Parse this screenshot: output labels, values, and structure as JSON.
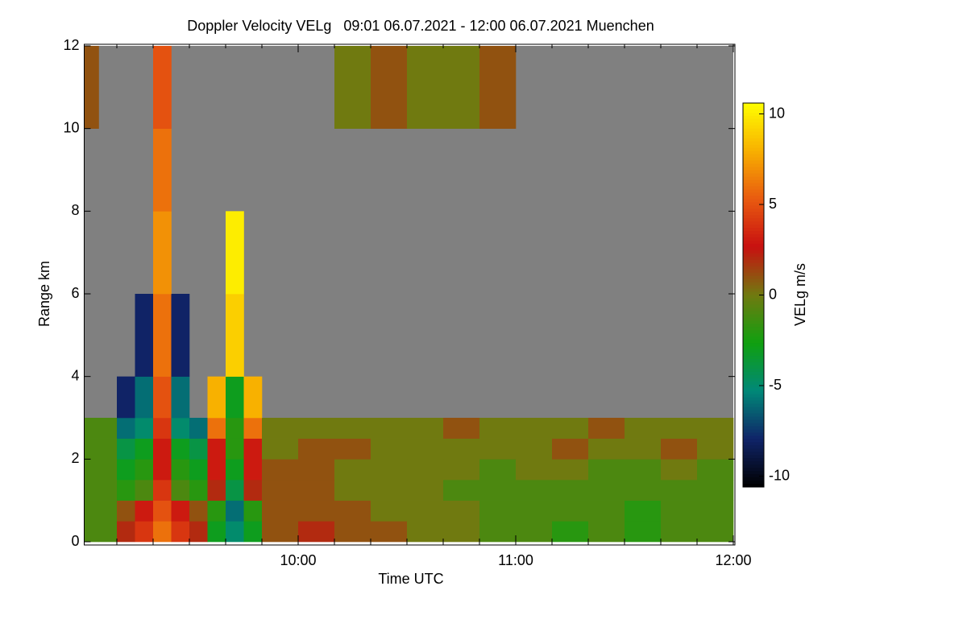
{
  "chart_data": {
    "type": "heatmap",
    "title": "Doppler Velocity VELg   09:01 06.07.2021 - 12:00 06.07.2021 Muenchen",
    "x_label": "Time UTC",
    "y_label": "Range km",
    "colorbar_label": "VELg m/s",
    "xlim": [
      541,
      720
    ],
    "ylim": [
      0,
      12
    ],
    "xticks": [
      {
        "value": 600,
        "label": "10:00"
      },
      {
        "value": 660,
        "label": "11:00"
      },
      {
        "value": 720,
        "label": "12:00"
      }
    ],
    "xminorticks": [
      550,
      560,
      570,
      580,
      590,
      610,
      620,
      630,
      640,
      650,
      670,
      680,
      690,
      700,
      710
    ],
    "yticks": [
      0,
      2,
      4,
      6,
      8,
      10,
      12
    ],
    "zlim": [
      -10.6,
      10.6
    ],
    "colorbar_ticks": [
      -10,
      -5,
      0,
      5,
      10
    ],
    "colormap": [
      "#000000",
      "#102468",
      "#008878",
      "#10a010",
      "#707a10",
      "#c81010",
      "#e85a10",
      "#f8b000",
      "#ffff00"
    ],
    "missing_color": "#808080",
    "x_edges": [
      541,
      545,
      550,
      555,
      560,
      565,
      570,
      575,
      580,
      585,
      590,
      600,
      610,
      620,
      630,
      640,
      650,
      660,
      670,
      680,
      690,
      700,
      710,
      720
    ],
    "y_edges": [
      0,
      0.5,
      1,
      1.5,
      2,
      2.5,
      3,
      4,
      6,
      8,
      10,
      12
    ],
    "z": [
      [
        -1,
        -1,
        2,
        4,
        6,
        4,
        2,
        -3,
        -5,
        -3,
        1,
        2,
        1,
        1,
        0,
        0,
        -1,
        -1,
        -2,
        -1,
        -2,
        -1,
        -1
      ],
      [
        -1,
        -1,
        1,
        3,
        5,
        3,
        1,
        -2,
        -6,
        -2,
        1,
        1,
        1,
        0,
        0,
        0,
        -1,
        -1,
        -1,
        -1,
        -2,
        -1,
        -1
      ],
      [
        -1,
        -1,
        -2,
        -1,
        4,
        -1,
        -2,
        2,
        -4,
        2,
        1,
        1,
        0,
        0,
        0,
        -1,
        -1,
        -1,
        -1,
        -1,
        -1,
        -1,
        -1
      ],
      [
        -1,
        -1,
        -3,
        -2,
        3,
        -2,
        -3,
        3,
        -3,
        3,
        1,
        1,
        0,
        0,
        0,
        0,
        -1,
        0,
        0,
        -1,
        -1,
        0,
        -1
      ],
      [
        -1,
        -1,
        -4,
        -3,
        3,
        -3,
        -4,
        3,
        -2,
        3,
        0,
        1,
        1,
        0,
        0,
        0,
        0,
        0,
        1,
        0,
        0,
        1,
        0
      ],
      [
        -1,
        -1,
        -6,
        -5,
        4,
        -5,
        -6,
        6,
        -2,
        6,
        0,
        0,
        0,
        0,
        0,
        1,
        0,
        0,
        0,
        1,
        0,
        0,
        0
      ],
      [
        null,
        null,
        -8,
        -6,
        5,
        -6,
        null,
        8,
        -3,
        8,
        null,
        null,
        null,
        null,
        null,
        null,
        null,
        null,
        null,
        null,
        null,
        null,
        null
      ],
      [
        null,
        null,
        null,
        -8,
        6,
        -8,
        null,
        null,
        9,
        null,
        null,
        null,
        null,
        null,
        null,
        null,
        null,
        null,
        null,
        null,
        null,
        null,
        null
      ],
      [
        null,
        null,
        null,
        null,
        7,
        null,
        null,
        null,
        10,
        null,
        null,
        null,
        null,
        null,
        null,
        null,
        null,
        null,
        null,
        null,
        null,
        null,
        null
      ],
      [
        null,
        null,
        null,
        null,
        6,
        null,
        null,
        null,
        null,
        null,
        null,
        null,
        null,
        null,
        null,
        null,
        null,
        null,
        null,
        null,
        null,
        null,
        null
      ],
      [
        1,
        null,
        null,
        null,
        5,
        null,
        null,
        null,
        null,
        null,
        null,
        null,
        0,
        1,
        0,
        0,
        1,
        null,
        null,
        null,
        null,
        null,
        null
      ]
    ]
  }
}
